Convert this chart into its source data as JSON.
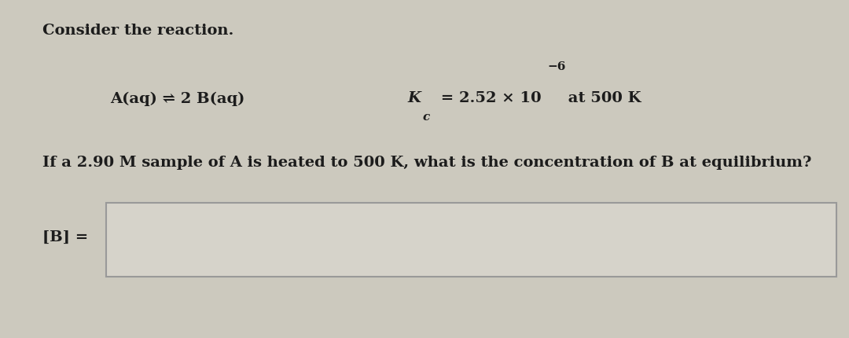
{
  "bg_color": "#ccc9be",
  "panel_color": "#e2dfd6",
  "title": "Consider the reaction.",
  "reaction_text": "A(aq) ⇌ 2 B(aq)",
  "kc_main": "K",
  "kc_sub": "c",
  "kc_rest": " = 2.52 × 10",
  "kc_sup": "−6",
  "kc_end": " at 500 K",
  "question": "If a 2.90 M sample of A is heated to 500 K, what is the concentration of B at equilibrium?",
  "answer_label": "[B] =",
  "text_color": "#1c1c1c",
  "box_color": "#d6d3ca",
  "box_edge_color": "#999999",
  "title_fontsize": 14,
  "body_fontsize": 14
}
